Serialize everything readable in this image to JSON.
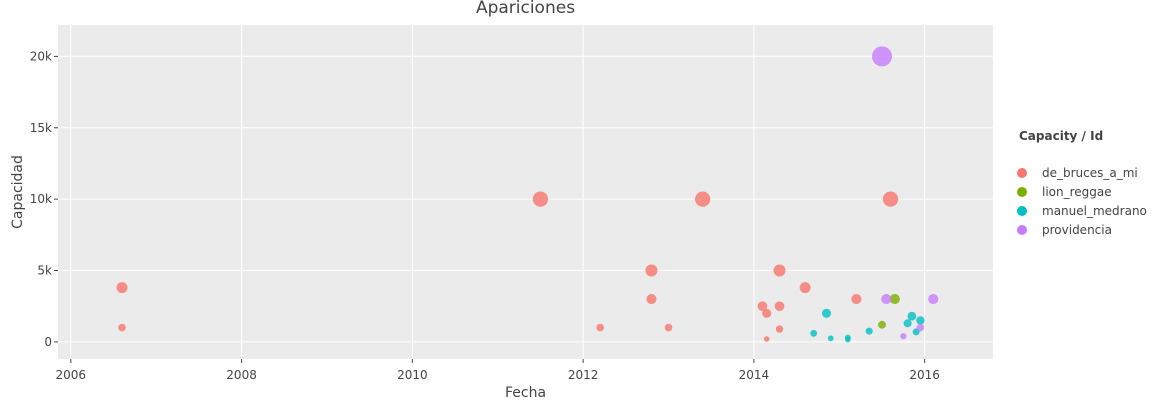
{
  "chart_data": {
    "type": "scatter",
    "title": "Apariciones",
    "xlabel": "Fecha",
    "ylabel": "Capacidad",
    "xlim": [
      2005.85,
      2016.8
    ],
    "ylim": [
      -1200,
      22200
    ],
    "x_ticks": [
      2006,
      2008,
      2010,
      2012,
      2014,
      2016
    ],
    "x_tick_labels": [
      "2006",
      "2008",
      "2010",
      "2012",
      "2014",
      "2016"
    ],
    "y_ticks": [
      0,
      5000,
      10000,
      15000,
      20000
    ],
    "y_tick_labels": [
      "0",
      "5k",
      "10k",
      "15k",
      "20k"
    ],
    "grid": true,
    "background": "#EBEBEB",
    "legend": {
      "title": "Capacity / Id",
      "placement": "right"
    },
    "series": [
      {
        "name": "de_bruces_a_mi",
        "color": "#F8766D",
        "points": [
          {
            "x": 2006.6,
            "y": 3800
          },
          {
            "x": 2006.6,
            "y": 1000
          },
          {
            "x": 2011.5,
            "y": 10000
          },
          {
            "x": 2012.2,
            "y": 1000
          },
          {
            "x": 2012.8,
            "y": 5000
          },
          {
            "x": 2012.8,
            "y": 3000
          },
          {
            "x": 2013.0,
            "y": 1000
          },
          {
            "x": 2013.4,
            "y": 10000
          },
          {
            "x": 2014.1,
            "y": 2500
          },
          {
            "x": 2014.15,
            "y": 2000
          },
          {
            "x": 2014.15,
            "y": 200
          },
          {
            "x": 2014.3,
            "y": 900
          },
          {
            "x": 2014.3,
            "y": 5000
          },
          {
            "x": 2014.3,
            "y": 2500
          },
          {
            "x": 2014.6,
            "y": 3800
          },
          {
            "x": 2015.2,
            "y": 3000
          },
          {
            "x": 2015.6,
            "y": 10000
          }
        ]
      },
      {
        "name": "lion_reggae",
        "color": "#7CAE00",
        "points": [
          {
            "x": 2015.5,
            "y": 1200
          },
          {
            "x": 2015.65,
            "y": 3000
          }
        ]
      },
      {
        "name": "manuel_medrano",
        "color": "#00BFC4",
        "points": [
          {
            "x": 2014.7,
            "y": 600
          },
          {
            "x": 2014.85,
            "y": 2000
          },
          {
            "x": 2014.9,
            "y": 250
          },
          {
            "x": 2015.1,
            "y": 300
          },
          {
            "x": 2015.1,
            "y": 150
          },
          {
            "x": 2015.35,
            "y": 750
          },
          {
            "x": 2015.8,
            "y": 1300
          },
          {
            "x": 2015.85,
            "y": 1800
          },
          {
            "x": 2015.9,
            "y": 700
          },
          {
            "x": 2015.95,
            "y": 1500
          }
        ]
      },
      {
        "name": "providencia",
        "color": "#C77CFF",
        "points": [
          {
            "x": 2015.5,
            "y": 20000
          },
          {
            "x": 2015.55,
            "y": 3000
          },
          {
            "x": 2015.75,
            "y": 400
          },
          {
            "x": 2015.95,
            "y": 1000
          },
          {
            "x": 2016.1,
            "y": 3000
          }
        ]
      }
    ]
  }
}
